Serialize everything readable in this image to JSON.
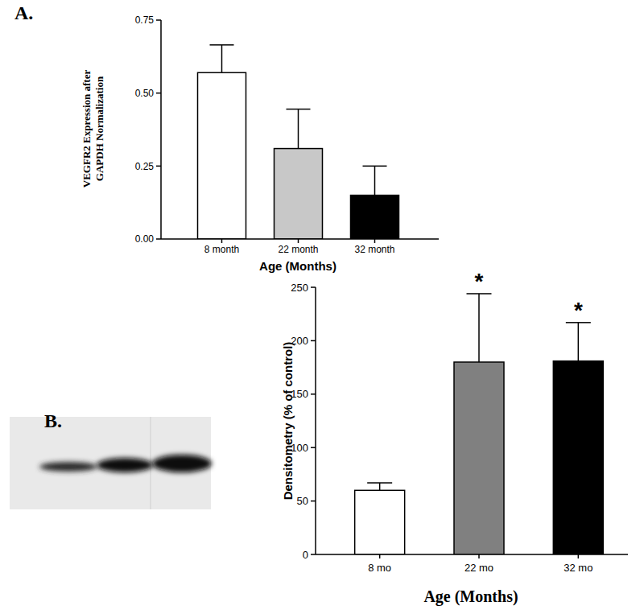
{
  "chart_data": [
    {
      "type": "bar",
      "title": "A.",
      "y_label": [
        "VEGFR2 Expression after",
        "GAPDH Normalization"
      ],
      "x_label": "Age (Months)",
      "categories": [
        "8 month",
        "22 month",
        "32 month"
      ],
      "values": [
        0.57,
        0.31,
        0.15
      ],
      "errors": [
        0.095,
        0.135,
        0.1
      ],
      "colors": [
        "#ffffff",
        "#c8c8c8",
        "#000000"
      ],
      "ylim": [
        0,
        0.75
      ],
      "yticks": [
        {
          "value": 0,
          "label": "0.00"
        },
        0.25,
        {
          "value": 0.5,
          "label": "0.50"
        },
        0.75
      ],
      "grid": false
    },
    {
      "type": "bar",
      "title": "B.",
      "y_label": [
        "Densitometry (% of control)"
      ],
      "x_label": "Age (Months)",
      "categories": [
        "8 mo",
        "22 mo",
        "32 mo"
      ],
      "values": [
        60,
        180,
        181
      ],
      "errors": [
        7,
        64,
        36
      ],
      "colors": [
        "#ffffff",
        "#808080",
        "#000000"
      ],
      "ylim": [
        0,
        250
      ],
      "yticks": [
        0,
        50,
        100,
        150,
        200,
        250
      ],
      "annotations": [
        {
          "x": "22 mo",
          "text": "*"
        },
        {
          "x": "32 mo",
          "text": "*"
        }
      ],
      "grid": false
    }
  ]
}
